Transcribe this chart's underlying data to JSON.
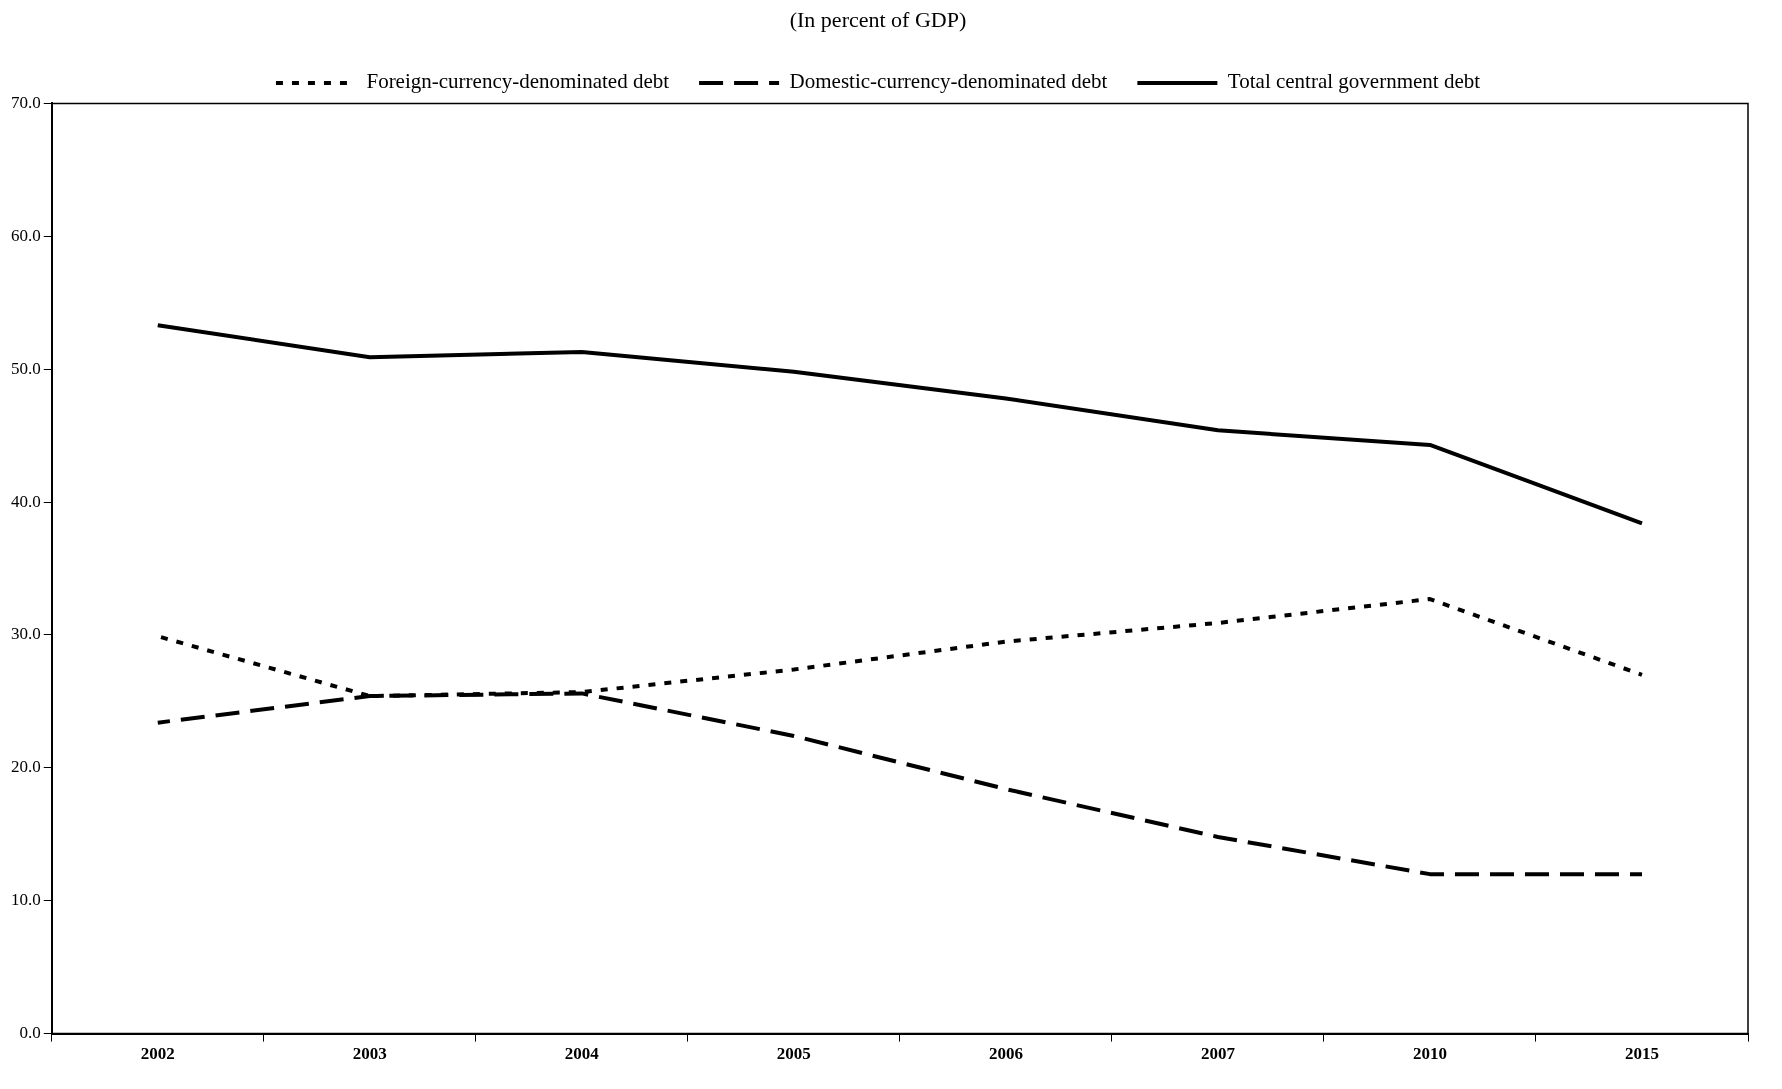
{
  "chart_data": {
    "type": "line",
    "subtitle": "(In percent of GDP)",
    "categories": [
      "2002",
      "2003",
      "2004",
      "2005",
      "2006",
      "2007",
      "2010",
      "2015"
    ],
    "series": [
      {
        "name": "Foreign-currency-denominated debt",
        "color": "#000000",
        "line_style": "dotted",
        "values": [
          29.9,
          25.4,
          25.7,
          27.4,
          29.5,
          30.9,
          32.7,
          27.0
        ]
      },
      {
        "name": "Domestic-currency-denominated debt",
        "color": "#000000",
        "line_style": "dashed",
        "values": [
          23.4,
          25.4,
          25.6,
          22.4,
          18.4,
          14.8,
          12.0,
          12.0
        ]
      },
      {
        "name": "Total central government debt",
        "color": "#000000",
        "line_style": "solid",
        "values": [
          53.3,
          50.9,
          51.3,
          49.8,
          47.8,
          45.4,
          44.3,
          38.4
        ]
      }
    ],
    "ylim": [
      0,
      70
    ],
    "yticks": [
      {
        "value": 0,
        "label": "0.0"
      },
      {
        "value": 10,
        "label": "10.0"
      },
      {
        "value": 20,
        "label": "20.0"
      },
      {
        "value": 30,
        "label": "30.0"
      },
      {
        "value": 40,
        "label": "40.0"
      },
      {
        "value": 50,
        "label": "50.0"
      },
      {
        "value": 60,
        "label": "60.0"
      },
      {
        "value": 70,
        "label": "70.0"
      }
    ],
    "grid": false,
    "legend": "top",
    "marker": "none"
  }
}
